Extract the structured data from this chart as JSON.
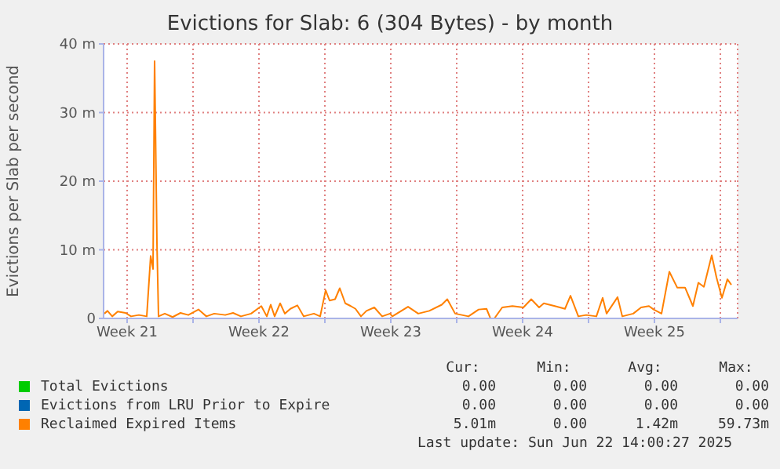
{
  "chart_data": {
    "type": "line",
    "title": "Evictions for Slab: 6 (304 Bytes) - by month",
    "ylabel": "Evictions per Slab per second",
    "xlim": [
      "2025-05-20T06:00",
      "2025-06-22T22:00"
    ],
    "xticks": [
      {
        "value": "2025-05-21T12:00",
        "label": "Week 21"
      },
      {
        "value": "2025-05-25T00:00",
        "label": null
      },
      {
        "value": "2025-05-28T12:00",
        "label": "Week 22"
      },
      {
        "value": "2025-06-01T00:00",
        "label": null
      },
      {
        "value": "2025-06-04T12:00",
        "label": "Week 23"
      },
      {
        "value": "2025-06-08T00:00",
        "label": null
      },
      {
        "value": "2025-06-11T12:00",
        "label": "Week 24"
      },
      {
        "value": "2025-06-15T00:00",
        "label": null
      },
      {
        "value": "2025-06-18T12:00",
        "label": "Week 25"
      },
      {
        "value": "2025-06-22T00:00",
        "label": null
      }
    ],
    "ylim": [
      0,
      40
    ],
    "yticks": [
      {
        "value": 0,
        "label": "0"
      },
      {
        "value": 10,
        "label": "10 m"
      },
      {
        "value": 20,
        "label": "20 m"
      },
      {
        "value": 30,
        "label": "30 m"
      },
      {
        "value": 40,
        "label": "40 m"
      }
    ],
    "grid": true,
    "legend": "bottom left",
    "x": [
      "2025-05-20T07:00",
      "2025-05-20T11:00",
      "2025-05-20T17:00",
      "2025-05-21T00:00",
      "2025-05-21T10:00",
      "2025-05-21T17:00",
      "2025-05-22T03:00",
      "2025-05-22T13:00",
      "2025-05-22T18:00",
      "2025-05-22T21:00",
      "2025-05-22T23:00",
      "2025-05-23T02:00",
      "2025-05-23T04:00",
      "2025-05-23T12:00",
      "2025-05-23T22:00",
      "2025-05-24T08:00",
      "2025-05-24T18:00",
      "2025-05-25T07:00",
      "2025-05-25T17:00",
      "2025-05-26T03:00",
      "2025-05-26T17:00",
      "2025-05-27T03:00",
      "2025-05-27T13:00",
      "2025-05-28T02:00",
      "2025-05-28T15:00",
      "2025-05-28T22:00",
      "2025-05-29T03:00",
      "2025-05-29T08:00",
      "2025-05-29T15:00",
      "2025-05-29T21:00",
      "2025-05-30T04:00",
      "2025-05-30T13:00",
      "2025-05-30T21:00",
      "2025-05-31T10:00",
      "2025-05-31T18:00",
      "2025-06-01T01:00",
      "2025-06-01T06:00",
      "2025-06-01T13:00",
      "2025-06-01T19:00",
      "2025-06-02T02:00",
      "2025-06-02T09:00",
      "2025-06-02T15:00",
      "2025-06-02T22:00",
      "2025-06-03T05:00",
      "2025-06-03T15:00",
      "2025-06-04T01:00",
      "2025-06-04T11:00",
      "2025-06-04T14:00",
      "2025-06-05T10:00",
      "2025-06-05T23:00",
      "2025-06-06T13:00",
      "2025-06-07T05:00",
      "2025-06-07T12:00",
      "2025-06-07T22:00",
      "2025-06-08T15:00",
      "2025-06-09T04:00",
      "2025-06-09T14:00",
      "2025-06-09T19:00",
      "2025-06-10T00:00",
      "2025-06-10T10:00",
      "2025-06-10T23:00",
      "2025-06-11T13:00",
      "2025-06-11T23:00",
      "2025-06-12T09:00",
      "2025-06-12T15:00",
      "2025-06-13T05:00",
      "2025-06-13T18:00",
      "2025-06-14T01:00",
      "2025-06-14T11:00",
      "2025-06-14T21:00",
      "2025-06-15T10:00",
      "2025-06-15T18:00",
      "2025-06-15T23:00",
      "2025-06-16T13:00",
      "2025-06-16T19:00",
      "2025-06-17T09:00",
      "2025-06-17T19:00",
      "2025-06-18T05:00",
      "2025-06-18T11:00",
      "2025-06-18T21:00",
      "2025-06-19T07:00",
      "2025-06-19T17:00",
      "2025-06-20T03:00",
      "2025-06-20T13:00",
      "2025-06-20T20:00",
      "2025-06-21T03:00",
      "2025-06-21T13:00",
      "2025-06-21T19:00",
      "2025-06-22T02:00",
      "2025-06-22T09:00",
      "2025-06-22T14:00"
    ],
    "series": [
      {
        "name": "Total Evictions",
        "color": "#00cc00",
        "values": [
          null,
          null,
          null,
          null,
          null,
          null,
          null,
          null,
          null,
          null,
          null,
          null,
          null,
          null,
          null,
          null,
          null,
          null,
          null,
          null,
          null,
          null,
          null,
          null,
          null,
          null,
          null,
          null,
          null,
          null,
          null,
          null,
          null,
          null,
          null,
          null,
          null,
          null,
          null,
          null,
          null,
          null,
          null,
          null,
          null,
          null,
          null,
          null,
          null,
          null,
          null,
          null,
          null,
          null,
          null,
          null,
          null,
          null,
          null,
          null,
          null,
          null,
          null,
          null,
          null,
          null,
          null,
          null,
          null,
          null,
          null,
          null,
          null,
          null,
          null,
          null,
          null,
          null,
          null,
          null,
          null,
          null,
          null,
          null,
          null,
          null,
          null,
          null,
          null,
          null,
          null
        ]
      },
      {
        "name": "Evictions from LRU Prior to Expire",
        "color": "#0066b3",
        "values": [
          null,
          null,
          null,
          null,
          null,
          null,
          null,
          null,
          null,
          null,
          null,
          null,
          null,
          null,
          null,
          null,
          null,
          null,
          null,
          null,
          null,
          null,
          null,
          null,
          null,
          null,
          null,
          null,
          null,
          null,
          null,
          null,
          null,
          null,
          null,
          null,
          null,
          null,
          null,
          null,
          null,
          null,
          null,
          null,
          null,
          null,
          null,
          null,
          null,
          null,
          null,
          null,
          null,
          null,
          null,
          null,
          null,
          null,
          null,
          null,
          null,
          null,
          null,
          null,
          null,
          null,
          null,
          null,
          null,
          null,
          null,
          null,
          null,
          null,
          null,
          null,
          null,
          null,
          null,
          null,
          null,
          null,
          null,
          null,
          null,
          null,
          null,
          null,
          null,
          null,
          null
        ]
      },
      {
        "name": "Reclaimed Expired Items",
        "color": "#ff8000",
        "values": [
          0.7,
          1.1,
          0.3,
          1.0,
          0.8,
          0.3,
          0.5,
          0.3,
          9.1,
          7.2,
          37.5,
          11,
          0.3,
          0.7,
          0.2,
          0.8,
          0.5,
          1.3,
          0.3,
          0.7,
          0.5,
          0.8,
          0.3,
          0.7,
          1.8,
          0.3,
          2.0,
          0.3,
          2.2,
          0.7,
          1.4,
          1.9,
          0.3,
          0.7,
          0.3,
          4.1,
          2.6,
          2.8,
          4.4,
          2.2,
          1.8,
          1.4,
          0.3,
          1.1,
          1.6,
          0.3,
          0.7,
          0.3,
          1.7,
          0.7,
          1.1,
          2.0,
          2.8,
          0.7,
          0.3,
          1.3,
          1.4,
          0,
          0,
          1.6,
          1.8,
          1.6,
          2.8,
          1.6,
          2.2,
          1.8,
          1.4,
          3.3,
          0.3,
          0.5,
          0.3,
          3.0,
          0.7,
          3.1,
          0.3,
          0.7,
          1.6,
          1.8,
          1.3,
          0.7,
          6.8,
          4.5,
          4.5,
          1.8,
          5.2,
          4.6,
          9.2,
          6.0,
          3.0,
          5.7,
          4.9
        ]
      }
    ],
    "annotations": [
      "Cur:",
      "Min:",
      "Avg:",
      "Max:",
      "0.00",
      "0.00",
      "0.00",
      "0.00",
      "0.00",
      "0.00",
      "0.00",
      "0.00",
      "5.01m",
      "0.00",
      "1.42m",
      "59.73m",
      "Last update: Sun Jun 22 14:00:27 2025"
    ]
  }
}
